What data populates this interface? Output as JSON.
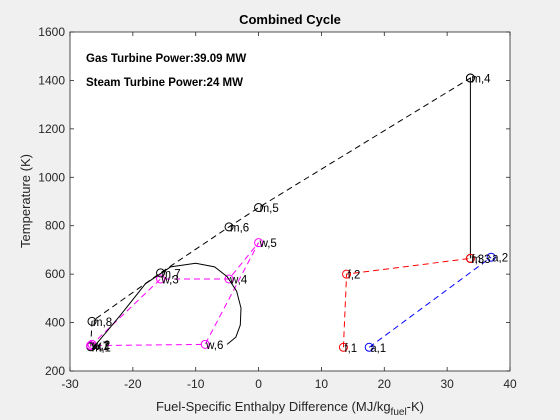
{
  "chart_data": {
    "type": "line",
    "title": "Combined Cycle",
    "xlabel_main": "Fuel-Specific Enthalpy Difference (MJ/kg",
    "xlabel_sub": "fuel",
    "xlabel_end": "-K)",
    "ylabel": "Temperature (K)",
    "xlim": [
      -30,
      40
    ],
    "ylim": [
      200,
      1600
    ],
    "xticks": [
      -30,
      -20,
      -10,
      0,
      10,
      20,
      30,
      40
    ],
    "yticks": [
      200,
      400,
      600,
      800,
      1000,
      1200,
      1400,
      1600
    ],
    "grid": false,
    "annotations": [
      "Gas Turbine Power:39.09 MW",
      "Steam Turbine Power:24 MW"
    ],
    "series": [
      {
        "color": "#000000",
        "style": "dashed",
        "marker": "circle",
        "points": [
          {
            "x": 33.7,
            "y": 1410,
            "label": "m,4"
          },
          {
            "x": 33.7,
            "y": 665,
            "label": "m,3"
          },
          {
            "x": 33.7,
            "y": 1410,
            "label": ""
          },
          {
            "x": 0.0,
            "y": 875,
            "label": "m,5"
          },
          {
            "x": -4.7,
            "y": 795,
            "label": "m,6"
          },
          {
            "x": -15.6,
            "y": 605,
            "label": "m,7"
          },
          {
            "x": -26.5,
            "y": 405,
            "label": "m,8"
          },
          {
            "x": -26.7,
            "y": 300,
            "label": "m,1"
          }
        ]
      },
      {
        "color": "#ff0000",
        "style": "dashed",
        "marker": "circle",
        "points": [
          {
            "x": 13.5,
            "y": 298,
            "label": "f,1"
          },
          {
            "x": 14.0,
            "y": 600,
            "label": "f,2"
          },
          {
            "x": 33.7,
            "y": 665,
            "label": "f,3"
          }
        ]
      },
      {
        "color": "#0000ff",
        "style": "dashed",
        "marker": "circle",
        "points": [
          {
            "x": 17.6,
            "y": 298,
            "label": "a,1"
          },
          {
            "x": 37.0,
            "y": 670,
            "label": "a,2"
          }
        ]
      },
      {
        "color": "#ff00ff",
        "style": "dashed",
        "marker": "circle",
        "points": [
          {
            "x": -26.7,
            "y": 305,
            "label": "w,1"
          },
          {
            "x": -26.5,
            "y": 310,
            "label": "w,2"
          },
          {
            "x": -15.6,
            "y": 580,
            "label": "w,3"
          },
          {
            "x": -4.7,
            "y": 580,
            "label": "w,4"
          },
          {
            "x": 0.0,
            "y": 730,
            "label": "w,5"
          },
          {
            "x": -8.5,
            "y": 310,
            "label": "w,6"
          },
          {
            "x": -26.7,
            "y": 305,
            "label": "w,7"
          }
        ]
      },
      {
        "color": "#000000",
        "style": "solid",
        "marker": "none",
        "points": [
          {
            "x": -26.5,
            "y": 290
          },
          {
            "x": -22,
            "y": 430
          },
          {
            "x": -18,
            "y": 560
          },
          {
            "x": -14,
            "y": 630
          },
          {
            "x": -10,
            "y": 645
          },
          {
            "x": -7,
            "y": 630
          },
          {
            "x": -5,
            "y": 590
          },
          {
            "x": -3.5,
            "y": 530
          },
          {
            "x": -2.8,
            "y": 460
          },
          {
            "x": -2.9,
            "y": 390
          },
          {
            "x": -3.6,
            "y": 340
          },
          {
            "x": -5,
            "y": 310
          }
        ]
      }
    ]
  }
}
